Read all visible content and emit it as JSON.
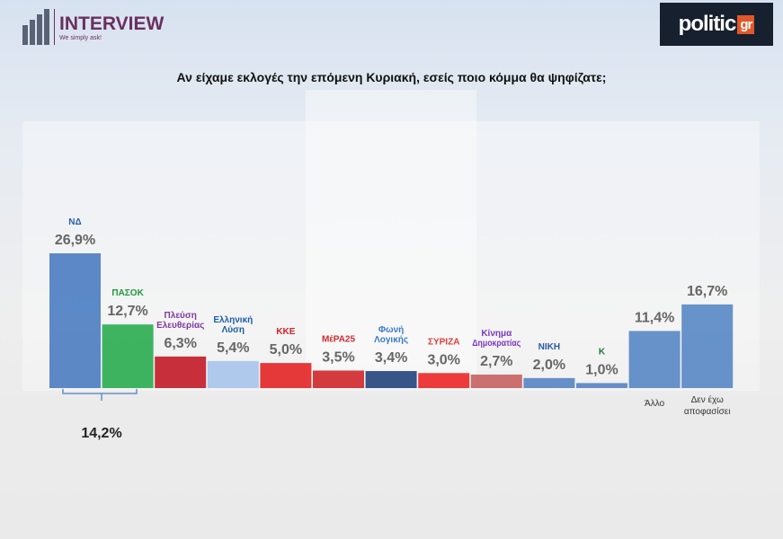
{
  "header": {
    "brand": "INTERVIEW",
    "brand_tagline": "We simply ask!",
    "media_logo": "politic",
    "media_logo_suffix": "gr"
  },
  "chart_data": {
    "type": "bar",
    "title": "Αν είχαμε εκλογές την επόμενη Κυριακή, εσείς ποιο κόμμα θα ψηφίζατε;",
    "categories": [
      "ΝΔ",
      "ΠΑΣΟΚ",
      "Πλεύση Ελευθερίας",
      "Ελληνική Λύση",
      "ΚΚΕ",
      "ΜέΡΑ25",
      "Φωνή Λογικής",
      "ΣΥΡΙΖΑ",
      "Κίνημα Δημοκρατίας",
      "ΝΙΚΗ",
      "Κ",
      "Άλλο",
      "Δεν έχω αποφασίσει"
    ],
    "visible_category_labels": {
      "11": "Άλλο",
      "12a": "Δεν έχω",
      "12b": "αποφασίσει"
    },
    "values": [
      26.9,
      12.7,
      6.3,
      5.4,
      5.0,
      3.5,
      3.4,
      3.0,
      2.7,
      2.0,
      1.0,
      11.4,
      16.7
    ],
    "value_labels": [
      "26,9%",
      "12,7%",
      "6,3%",
      "5,4%",
      "5,0%",
      "3,5%",
      "3,4%",
      "3,0%",
      "2,7%",
      "2,0%",
      "1,0%",
      "11,4%",
      "16,7%"
    ],
    "colors": [
      "#4f7fc2",
      "#2fae52",
      "#c3202b",
      "#a8c6ea",
      "#e42828",
      "#d02a2e",
      "#27477f",
      "#ec2a2a",
      "#c96464",
      "#5a86c4",
      "#5a86c4",
      "#5a8ac6",
      "#5a8ac6"
    ],
    "annotation": {
      "bracket_over": [
        "ΝΔ",
        "ΠΑΣΟΚ"
      ],
      "label": "14,2%",
      "value": 14.2
    },
    "ylim": [
      0,
      27
    ],
    "grid": false,
    "legend": "none"
  }
}
